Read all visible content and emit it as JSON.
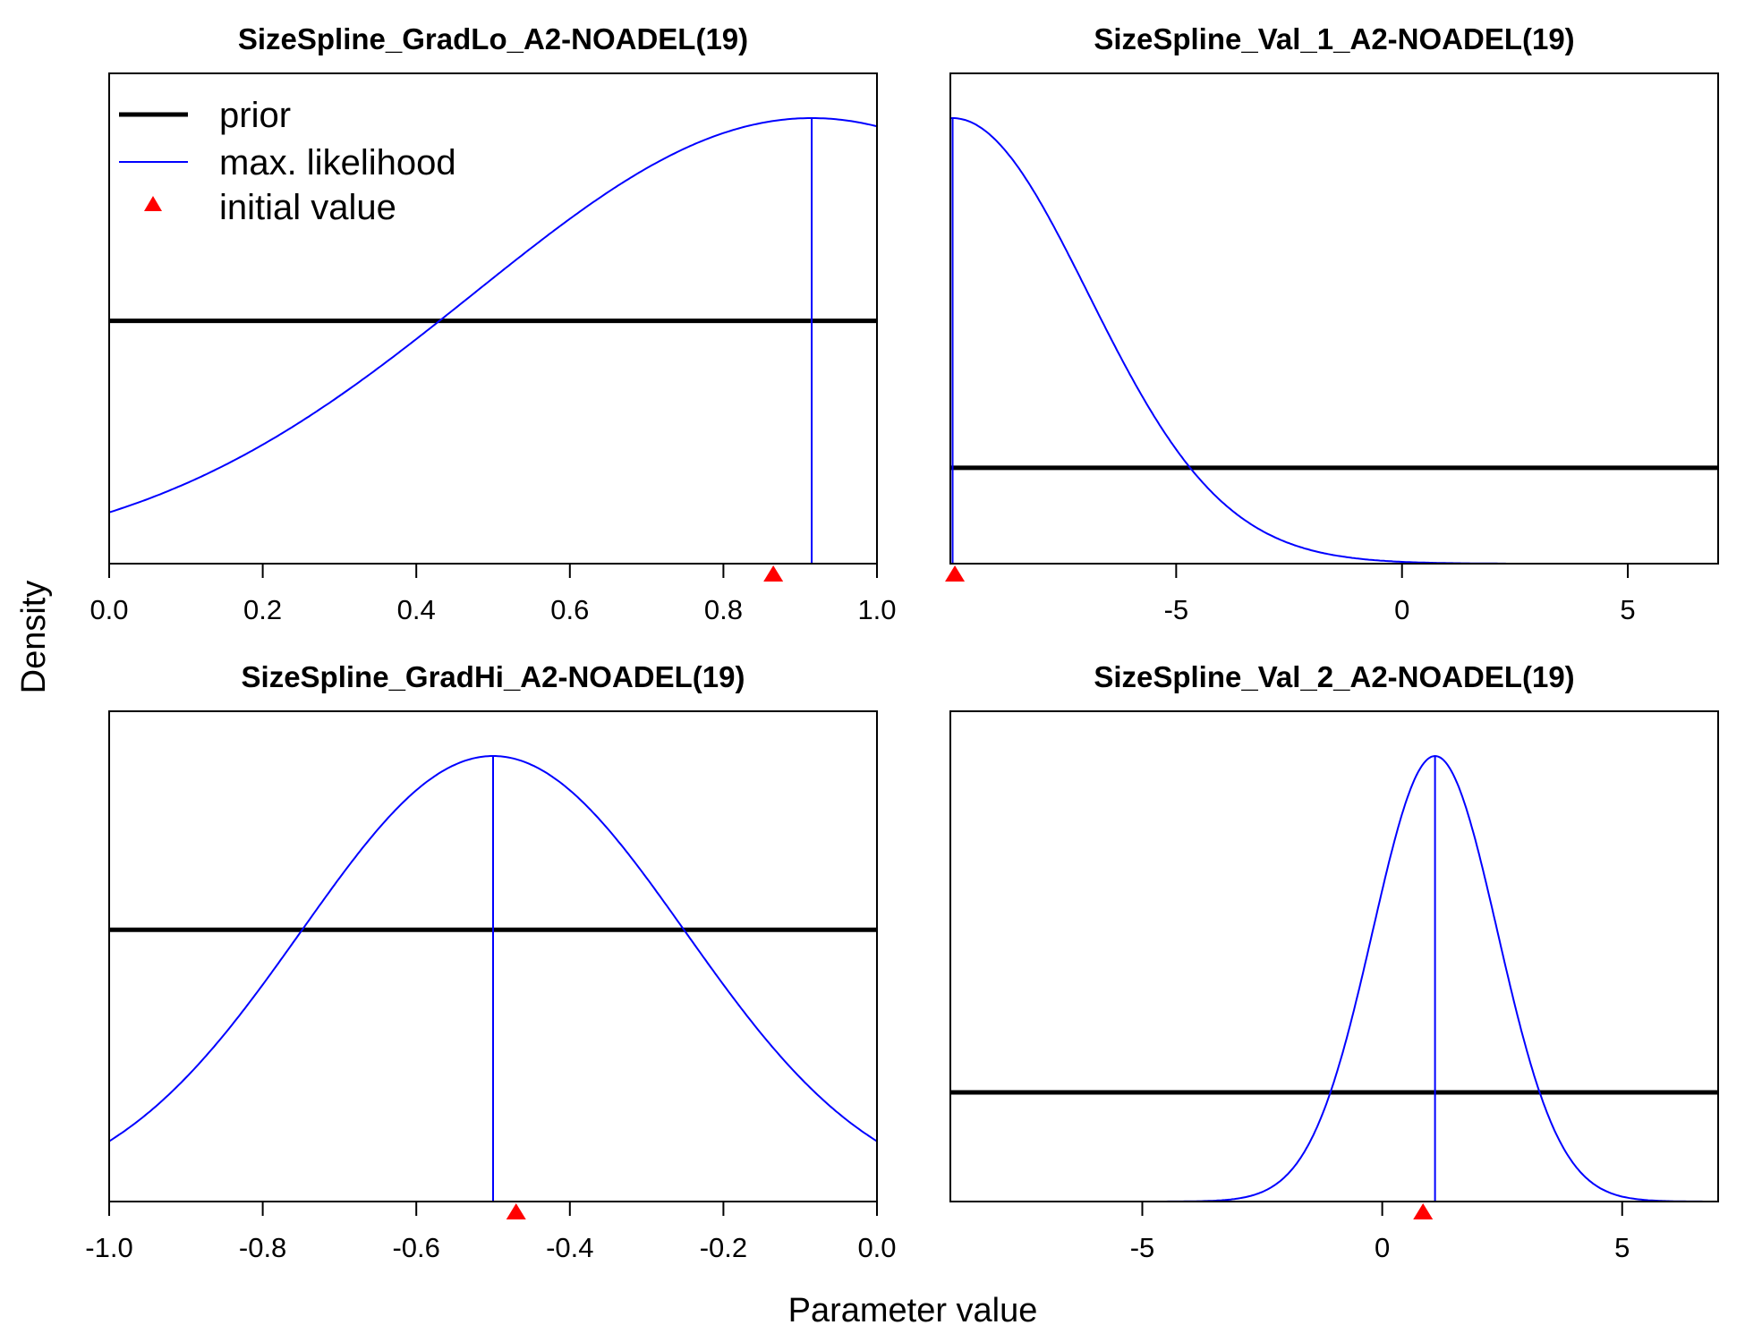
{
  "figure": {
    "xlabel": "Parameter value",
    "ylabel": "Density",
    "legend": {
      "placement": "top-left of first panel",
      "items": [
        {
          "label": "prior",
          "style": "thick-line",
          "color": "#000000"
        },
        {
          "label": "max. likelihood",
          "style": "thin-line",
          "color": "#0000ff"
        },
        {
          "label": "initial value",
          "style": "triangle",
          "color": "#ff0000"
        }
      ]
    },
    "colors": {
      "prior": "#000000",
      "likelihood": "#0000ff",
      "initial": "#ff0000"
    }
  },
  "chart_data": [
    {
      "type": "line",
      "title": "SizeSpline_GradLo_A2-NOADEL(19)",
      "xlim": [
        0.0,
        1.0
      ],
      "ticks": [
        0.0,
        0.2,
        0.4,
        0.6,
        0.8,
        1.0
      ],
      "tick_labels": [
        "0.0",
        "0.2",
        "0.4",
        "0.6",
        "0.8",
        "1.0"
      ],
      "prior_level": 0.545,
      "likelihood": {
        "mean": 0.915,
        "sd": 0.44
      },
      "mle": 0.915,
      "initial_value": 0.865
    },
    {
      "type": "line",
      "title": "SizeSpline_Val_1_A2-NOADEL(19)",
      "xlim": [
        -10.0,
        7.0
      ],
      "ticks": [
        -5,
        0,
        5
      ],
      "tick_labels": [
        "-5",
        "0",
        "5"
      ],
      "prior_level": 0.215,
      "likelihood": {
        "mean": -9.95,
        "sd": 3.0
      },
      "likelihood_end": 2.3,
      "mle": -9.95,
      "initial_value": -9.9
    },
    {
      "type": "line",
      "title": "SizeSpline_GradHi_A2-NOADEL(19)",
      "xlim": [
        -1.0,
        0.0
      ],
      "ticks": [
        -1.0,
        -0.8,
        -0.6,
        -0.4,
        -0.2,
        0.0
      ],
      "tick_labels": [
        "-1.0",
        "-0.8",
        "-0.6",
        "-0.4",
        "-0.2",
        "0.0"
      ],
      "prior_level": 0.61,
      "likelihood": {
        "mean": -0.5,
        "sd": 0.25
      },
      "mle": -0.5,
      "initial_value": -0.47
    },
    {
      "type": "line",
      "title": "SizeSpline_Val_2_A2-NOADEL(19)",
      "xlim": [
        -9.0,
        7.0
      ],
      "ticks": [
        -5,
        0,
        5
      ],
      "tick_labels": [
        "-5",
        "0",
        "5"
      ],
      "prior_level": 0.245,
      "likelihood": {
        "mean": 1.1,
        "sd": 1.3
      },
      "likelihood_start": -4.5,
      "mle": 1.1,
      "initial_value": 0.85
    }
  ]
}
